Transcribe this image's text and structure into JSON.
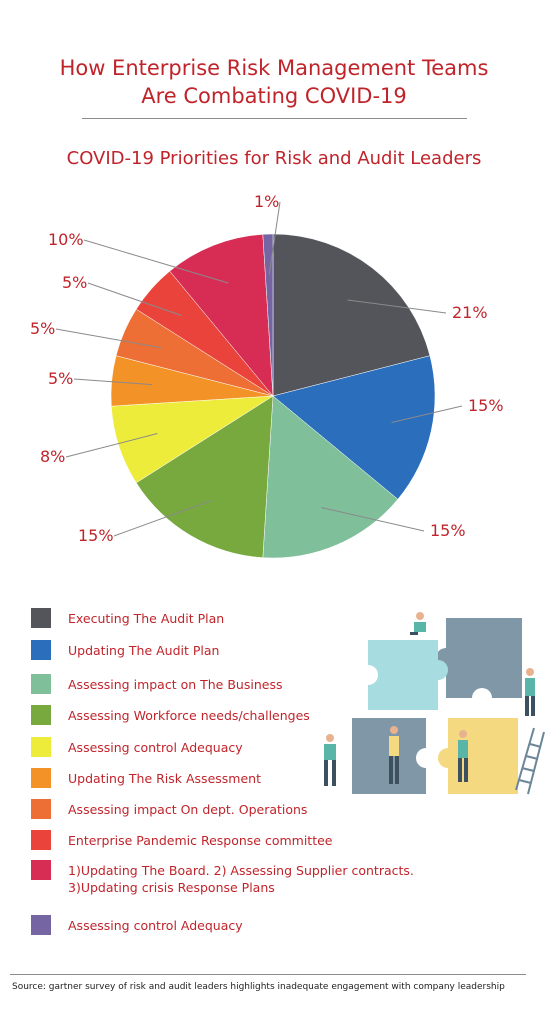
{
  "header": {
    "title_line1": "How Enterprise Risk Management Teams",
    "title_line2": "Are Combating COVID-19"
  },
  "chart_data": {
    "type": "pie",
    "title": "COVID-19 Priorities for Risk and Audit Leaders",
    "slices": [
      {
        "label": "Executing The Audit Plan",
        "value": 21,
        "display": "21%",
        "color": "#53555b"
      },
      {
        "label": "Updating The Audit Plan",
        "value": 15,
        "display": "15%",
        "color": "#2a6ebc"
      },
      {
        "label": "Assessing impact on The Business",
        "value": 15,
        "display": "15%",
        "color": "#7fbf9a"
      },
      {
        "label": "Assessing Workforce needs/challenges",
        "value": 15,
        "display": "15%",
        "color": "#78a93f"
      },
      {
        "label": "Assessing control Adequacy",
        "value": 8,
        "display": "8%",
        "color": "#eeec3a"
      },
      {
        "label": "Updating The Risk Assessment",
        "value": 5,
        "display": "5%",
        "color": "#f39327"
      },
      {
        "label": "Assessing impact On dept. Operations",
        "value": 5,
        "display": "5%",
        "color": "#ee6f35"
      },
      {
        "label": "Enterprise Pandemic Response committee",
        "value": 5,
        "display": "5%",
        "color": "#e9433b"
      },
      {
        "label": "1)Updating The Board.  2) Assessing Supplier contracts.",
        "label_line2": "3)Updating crisis Response Plans",
        "value": 10,
        "display": "10%",
        "color": "#d72d55"
      },
      {
        "label": "Assessing control Adequacy",
        "value": 1,
        "display": "1%",
        "color": "#7566a3"
      }
    ]
  },
  "footer": {
    "source": "Source: gartner survey of risk and audit leaders highlights inadequate engagement with company leadership"
  }
}
